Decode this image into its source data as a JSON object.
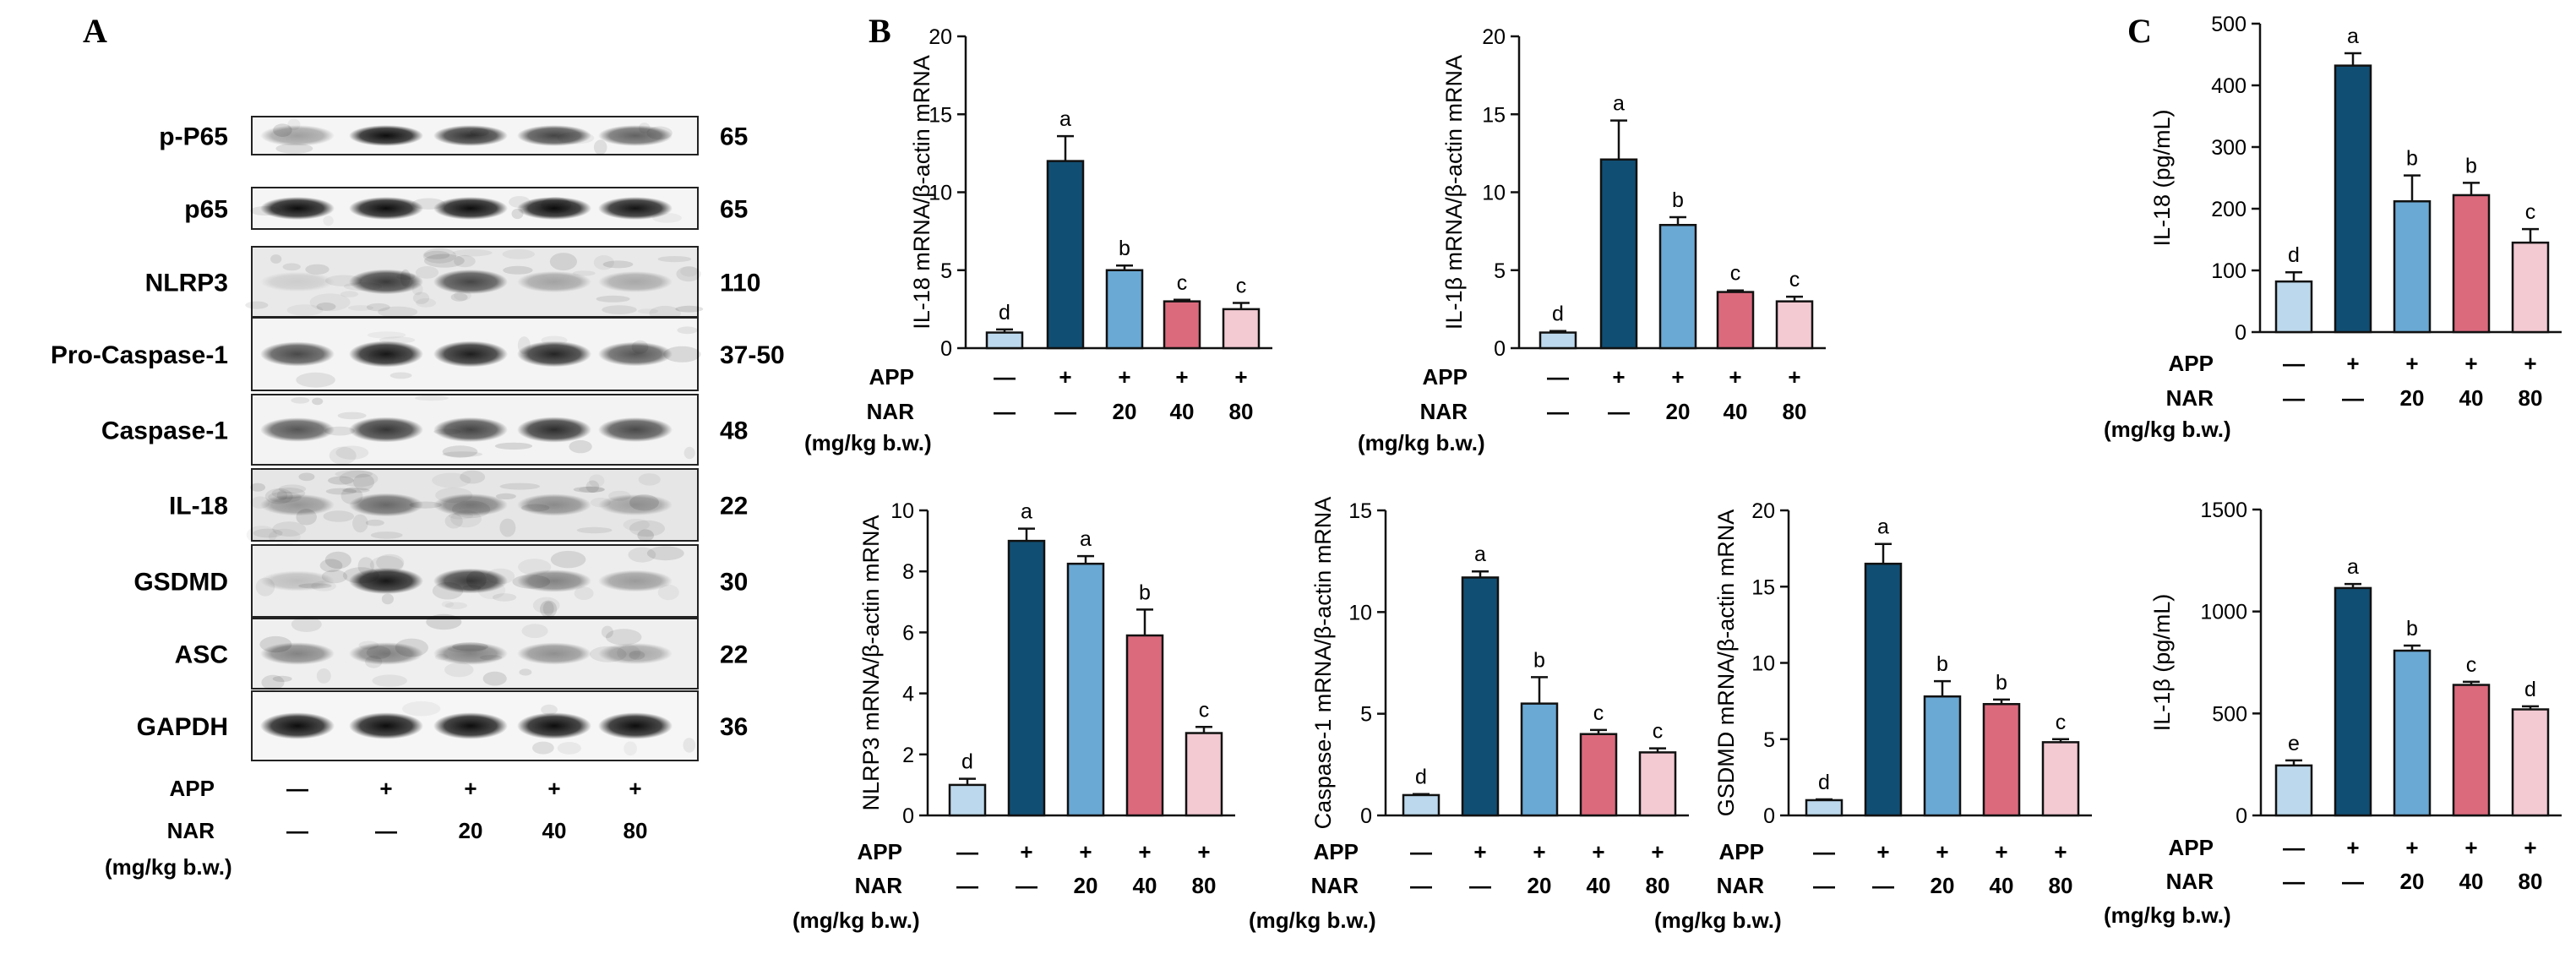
{
  "figure": {
    "panel_labels": [
      "A",
      "B",
      "C"
    ]
  },
  "colors": {
    "control": "#bcd8ec",
    "app": "#114e73",
    "nar20": "#6aa9d4",
    "nar40": "#db6a7d",
    "nar80": "#f3c9d2",
    "axis": "#111111"
  },
  "conditions": {
    "row_labels": [
      "APP",
      "NAR",
      "(mg/kg b.w.)"
    ],
    "app": [
      "—",
      "+",
      "+",
      "+",
      "+"
    ],
    "nar": [
      "—",
      "—",
      "20",
      "40",
      "80"
    ]
  },
  "blot": {
    "bands": [
      {
        "name": "p-P65",
        "kda": "65",
        "intensity": [
          0.35,
          0.95,
          0.8,
          0.72,
          0.6
        ],
        "noise": 0.05
      },
      {
        "name": "p65",
        "kda": "65",
        "intensity": [
          0.95,
          0.95,
          0.95,
          0.95,
          0.92
        ],
        "noise": 0.05
      },
      {
        "name": "NLRP3",
        "kda": "110",
        "intensity": [
          0.12,
          0.75,
          0.7,
          0.3,
          0.28
        ],
        "noise": 0.25
      },
      {
        "name": "Pro-Caspase-1",
        "kda": "37-50",
        "intensity": [
          0.7,
          0.9,
          0.88,
          0.85,
          0.65
        ],
        "noise": 0.06
      },
      {
        "name": "Caspase-1",
        "kda": "48",
        "intensity": [
          0.65,
          0.78,
          0.72,
          0.82,
          0.7
        ],
        "noise": 0.08
      },
      {
        "name": "IL-18",
        "kda": "22",
        "intensity": [
          0.35,
          0.55,
          0.45,
          0.4,
          0.3
        ],
        "noise": 0.3
      },
      {
        "name": "GSDMD",
        "kda": "30",
        "intensity": [
          0.2,
          0.9,
          0.75,
          0.45,
          0.35
        ],
        "noise": 0.18
      },
      {
        "name": "ASC",
        "kda": "22",
        "intensity": [
          0.45,
          0.45,
          0.45,
          0.4,
          0.3
        ],
        "noise": 0.15
      },
      {
        "name": "GAPDH",
        "kda": "36",
        "intensity": [
          0.95,
          0.95,
          0.95,
          0.95,
          0.95
        ],
        "noise": 0.04
      }
    ]
  },
  "chart_data": [
    {
      "type": "bar",
      "panel": "B",
      "ylabel": "IL-18 mRNA/β-actin mRNA",
      "ylim": [
        0,
        20
      ],
      "yticks": [
        0,
        5,
        10,
        15,
        20
      ],
      "values": [
        1.0,
        12.0,
        5.0,
        3.0,
        2.5
      ],
      "errors": [
        0.2,
        1.6,
        0.3,
        0.1,
        0.4
      ],
      "letters": [
        "d",
        "a",
        "b",
        "c",
        "c"
      ]
    },
    {
      "type": "bar",
      "panel": "B",
      "ylabel": "IL-1β mRNA/β-actin mRNA",
      "ylim": [
        0,
        20
      ],
      "yticks": [
        0,
        5,
        10,
        15,
        20
      ],
      "values": [
        1.0,
        12.1,
        7.9,
        3.6,
        3.0
      ],
      "errors": [
        0.1,
        2.5,
        0.5,
        0.1,
        0.3
      ],
      "letters": [
        "d",
        "a",
        "b",
        "c",
        "c"
      ]
    },
    {
      "type": "bar",
      "panel": "C",
      "ylabel": "IL-18 (pg/mL)",
      "ylim": [
        0,
        500
      ],
      "yticks": [
        0,
        100,
        200,
        300,
        400,
        500
      ],
      "values": [
        82,
        432,
        212,
        222,
        145
      ],
      "errors": [
        15,
        20,
        42,
        20,
        22
      ],
      "letters": [
        "d",
        "a",
        "b",
        "b",
        "c"
      ]
    },
    {
      "type": "bar",
      "panel": "B",
      "ylabel": "NLRP3 mRNA/β-actin mRNA",
      "ylim": [
        0,
        10
      ],
      "yticks": [
        0,
        2,
        4,
        6,
        8,
        10
      ],
      "values": [
        1.0,
        9.0,
        8.25,
        5.9,
        2.7
      ],
      "errors": [
        0.2,
        0.4,
        0.25,
        0.85,
        0.2
      ],
      "letters": [
        "d",
        "a",
        "a",
        "b",
        "c"
      ]
    },
    {
      "type": "bar",
      "panel": "B",
      "ylabel": "Caspase-1 mRNA/β-actin mRNA",
      "ylim": [
        0,
        15
      ],
      "yticks": [
        0,
        5,
        10,
        15
      ],
      "values": [
        1.0,
        11.7,
        5.5,
        4.0,
        3.1
      ],
      "errors": [
        0.05,
        0.3,
        1.3,
        0.2,
        0.2
      ],
      "letters": [
        "d",
        "a",
        "b",
        "c",
        "c"
      ]
    },
    {
      "type": "bar",
      "panel": "B",
      "ylabel": "GSDMD mRNA/β-actin mRNA",
      "ylim": [
        0,
        20
      ],
      "yticks": [
        0,
        5,
        10,
        15,
        20
      ],
      "values": [
        1.0,
        16.5,
        7.8,
        7.3,
        4.8
      ],
      "errors": [
        0.05,
        1.3,
        1.0,
        0.3,
        0.2
      ],
      "letters": [
        "d",
        "a",
        "b",
        "b",
        "c"
      ]
    },
    {
      "type": "bar",
      "panel": "C",
      "ylabel": "IL-1β (pg/mL)",
      "ylim": [
        0,
        1500
      ],
      "yticks": [
        0,
        500,
        1000,
        1500
      ],
      "values": [
        245,
        1115,
        808,
        640,
        520
      ],
      "errors": [
        25,
        20,
        25,
        15,
        15
      ],
      "letters": [
        "e",
        "a",
        "b",
        "c",
        "d"
      ]
    }
  ]
}
